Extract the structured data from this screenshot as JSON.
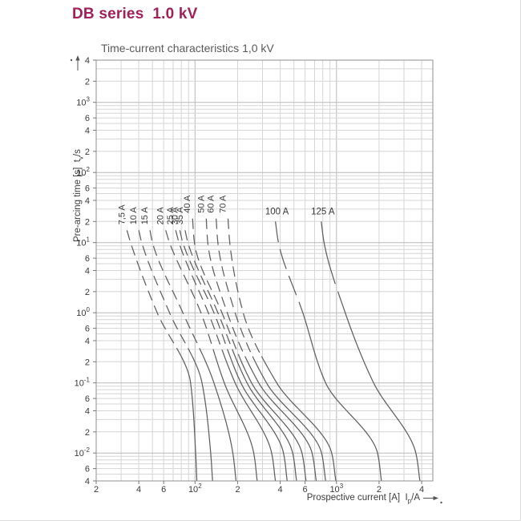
{
  "page": {
    "title": "DB series  1.0 kV"
  },
  "colors": {
    "title": "#A02058",
    "text": "#3d3d3d",
    "tick_text": "#3a3a3a",
    "curve": "#5f5f5f",
    "grid_minor": "#d6d6d6",
    "grid_decade": "#b9b9b9",
    "frame": "#8f8f8f"
  },
  "chart_data": {
    "type": "line",
    "title": "Time-current characteristics 1,0 kV",
    "xlabel": {
      "pre": "Prospective current [A]  ",
      "base": "I",
      "sub": "p",
      "post": "/A"
    },
    "ylabel": {
      "pre": "Pre-arcing time [s]  ",
      "base": "t",
      "sub": "v",
      "post": "/s"
    },
    "x_log": true,
    "y_log": true,
    "grid": true,
    "xlim": [
      20,
      4800
    ],
    "ylim": [
      0.004,
      4000
    ],
    "x_ticks": [
      {
        "v": 20,
        "label": "2"
      },
      {
        "v": 40,
        "label": "4"
      },
      {
        "v": 60,
        "label": "6"
      },
      {
        "v": 100,
        "label": "10^2"
      },
      {
        "v": 200,
        "label": "2"
      },
      {
        "v": 400,
        "label": "4"
      },
      {
        "v": 600,
        "label": "6"
      },
      {
        "v": 1000,
        "label": "10^3"
      },
      {
        "v": 2000,
        "label": "2"
      },
      {
        "v": 4000,
        "label": "4"
      }
    ],
    "y_ticks": [
      {
        "v": 4000,
        "label": "4"
      },
      {
        "v": 2000,
        "label": "2"
      },
      {
        "v": 1000,
        "label": "10^3"
      },
      {
        "v": 600,
        "label": "6"
      },
      {
        "v": 400,
        "label": "4"
      },
      {
        "v": 200,
        "label": "2"
      },
      {
        "v": 100,
        "label": "10^2"
      },
      {
        "v": 60,
        "label": "6"
      },
      {
        "v": 40,
        "label": "4"
      },
      {
        "v": 20,
        "label": "2"
      },
      {
        "v": 10,
        "label": "10^1"
      },
      {
        "v": 6,
        "label": "6"
      },
      {
        "v": 4,
        "label": "4"
      },
      {
        "v": 2,
        "label": "2"
      },
      {
        "v": 1,
        "label": "10^0"
      },
      {
        "v": 0.6,
        "label": "6"
      },
      {
        "v": 0.4,
        "label": "4"
      },
      {
        "v": 0.2,
        "label": "2"
      },
      {
        "v": 0.1,
        "label": "10^-1"
      },
      {
        "v": 0.06,
        "label": "6"
      },
      {
        "v": 0.04,
        "label": "4"
      },
      {
        "v": 0.02,
        "label": "2"
      },
      {
        "v": 0.01,
        "label": "10^-2"
      },
      {
        "v": 0.006,
        "label": "6"
      },
      {
        "v": 0.004,
        "label": "4"
      }
    ],
    "series": [
      {
        "name": "7,5 A",
        "label_style": "rotated",
        "dash": "short",
        "dash_until_t": 0.23,
        "points": [
          [
            15,
            33
          ],
          [
            10,
            35
          ],
          [
            1,
            54
          ],
          [
            0.1,
            93
          ],
          [
            0.01,
            101
          ],
          [
            0.004,
            103
          ]
        ]
      },
      {
        "name": "10 A",
        "label_style": "rotated",
        "dash": "short",
        "dash_until_t": 0.23,
        "points": [
          [
            15,
            40
          ],
          [
            10,
            42
          ],
          [
            1,
            66
          ],
          [
            0.1,
            112
          ],
          [
            0.01,
            129
          ],
          [
            0.004,
            133
          ]
        ]
      },
      {
        "name": "15 A",
        "label_style": "rotated",
        "dash": "short",
        "dash_until_t": 0.23,
        "points": [
          [
            15,
            48
          ],
          [
            10,
            50
          ],
          [
            1,
            82
          ],
          [
            0.1,
            136
          ],
          [
            0.01,
            185
          ],
          [
            0.004,
            195
          ]
        ]
      },
      {
        "name": "20 A",
        "label_style": "rotated",
        "dash": "short",
        "dash_until_t": 0.23,
        "points": [
          [
            15,
            62
          ],
          [
            10,
            66
          ],
          [
            1,
            110
          ],
          [
            0.1,
            161
          ],
          [
            0.01,
            260
          ],
          [
            0.004,
            275
          ]
        ]
      },
      {
        "name": "25 A",
        "label_style": "rotated",
        "dash": "short",
        "dash_until_t": 0.23,
        "points": [
          [
            15,
            73
          ],
          [
            10,
            77
          ],
          [
            1,
            124
          ],
          [
            0.1,
            192
          ],
          [
            0.01,
            348
          ],
          [
            0.004,
            370
          ]
        ]
      },
      {
        "name": "30 A",
        "label_style": "rotated",
        "dash": "short",
        "dash_until_t": 0.23,
        "points": [
          [
            15,
            78
          ],
          [
            10,
            82
          ],
          [
            1,
            136
          ],
          [
            0.1,
            211
          ],
          [
            0.01,
            422
          ],
          [
            0.004,
            448
          ]
        ]
      },
      {
        "name": "35 A",
        "label_style": "rotated",
        "dash": "short",
        "dash_until_t": 0.23,
        "points": [
          [
            15,
            85
          ],
          [
            10,
            89
          ],
          [
            1,
            145
          ],
          [
            0.1,
            233
          ],
          [
            0.01,
            490
          ],
          [
            0.004,
            522
          ]
        ]
      },
      {
        "name": "40 A",
        "label_style": "rotated",
        "dash": "short",
        "dash_until_t": 0.23,
        "points": [
          [
            22,
            96
          ],
          [
            10,
            99
          ],
          [
            1,
            155
          ],
          [
            0.1,
            251
          ],
          [
            0.01,
            570
          ],
          [
            0.004,
            609
          ]
        ]
      },
      {
        "name": "50 A",
        "label_style": "rotated",
        "dash": "short",
        "dash_until_t": 0.23,
        "points": [
          [
            22,
            120
          ],
          [
            10,
            123
          ],
          [
            1,
            169
          ],
          [
            0.1,
            282
          ],
          [
            0.01,
            672
          ],
          [
            0.004,
            719
          ]
        ]
      },
      {
        "name": "60 A",
        "label_style": "rotated",
        "dash": "short",
        "dash_until_t": 0.23,
        "points": [
          [
            22,
            141
          ],
          [
            10,
            145
          ],
          [
            1,
            192
          ],
          [
            0.1,
            320
          ],
          [
            0.01,
            784
          ],
          [
            0.004,
            838
          ]
        ]
      },
      {
        "name": "70 A",
        "label_style": "rotated",
        "dash": "short",
        "dash_until_t": 0.23,
        "points": [
          [
            22,
            171
          ],
          [
            10,
            176
          ],
          [
            1,
            219
          ],
          [
            0.1,
            378
          ],
          [
            0.01,
            925
          ],
          [
            0.004,
            989
          ]
        ]
      },
      {
        "name": "100 A",
        "label_style": "horizontal",
        "dash": "mid",
        "dash_until_t": 1.2,
        "points": [
          [
            20,
            370
          ],
          [
            10,
            389
          ],
          [
            1,
            578
          ],
          [
            0.1,
            838
          ],
          [
            0.01,
            1950
          ],
          [
            0.004,
            2078
          ]
        ]
      },
      {
        "name": "125 A",
        "label_style": "horizontal",
        "dash": "long",
        "dash_until_t": 1.2,
        "points": [
          [
            20,
            780
          ],
          [
            10,
            817
          ],
          [
            1,
            1153
          ],
          [
            0.1,
            1830
          ],
          [
            0.01,
            3640
          ],
          [
            0.004,
            3889
          ]
        ]
      }
    ]
  }
}
